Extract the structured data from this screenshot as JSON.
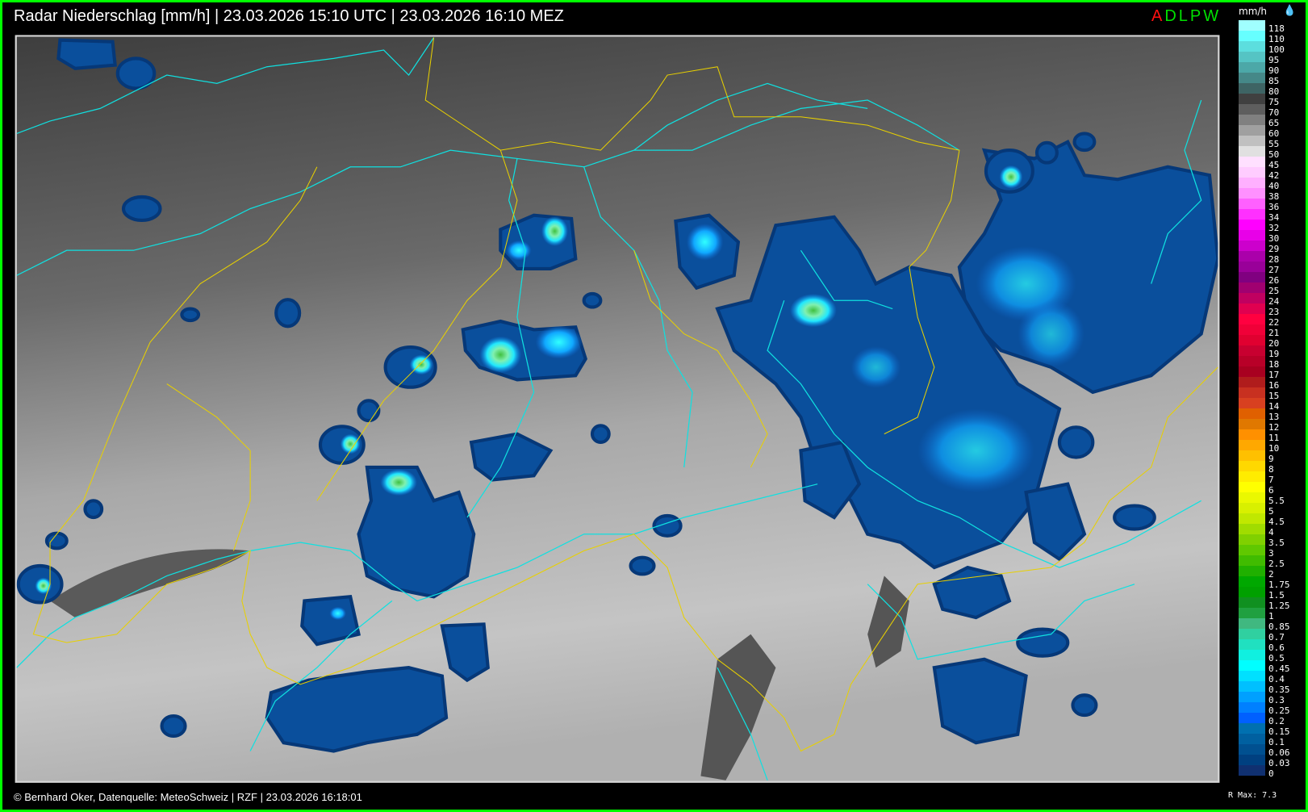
{
  "header": {
    "title": "Radar Niederschlag [mm/h] | 23.03.2026 15:10 UTC | 23.03.2026 16:10 MEZ",
    "brand_first_letter": "A",
    "brand_rest": "DLPW"
  },
  "legend": {
    "unit": "mm/h",
    "icon": "raindrops-icon",
    "items": [
      {
        "label": "118",
        "color": "#a0ffff"
      },
      {
        "label": "110",
        "color": "#66ffff"
      },
      {
        "label": "100",
        "color": "#5cdede"
      },
      {
        "label": "95",
        "color": "#55c4c4"
      },
      {
        "label": "90",
        "color": "#4ca8a8"
      },
      {
        "label": "85",
        "color": "#458888"
      },
      {
        "label": "80",
        "color": "#3e6464"
      },
      {
        "label": "75",
        "color": "#404040"
      },
      {
        "label": "70",
        "color": "#5e5e5e"
      },
      {
        "label": "65",
        "color": "#808080"
      },
      {
        "label": "60",
        "color": "#a0a0a0"
      },
      {
        "label": "55",
        "color": "#c0c0c0"
      },
      {
        "label": "50",
        "color": "#e0e0e0"
      },
      {
        "label": "45",
        "color": "#ffe0ff"
      },
      {
        "label": "42",
        "color": "#ffccff"
      },
      {
        "label": "40",
        "color": "#ffb0ff"
      },
      {
        "label": "38",
        "color": "#ff90ff"
      },
      {
        "label": "36",
        "color": "#ff60ff"
      },
      {
        "label": "34",
        "color": "#ff30ff"
      },
      {
        "label": "32",
        "color": "#ff00ff"
      },
      {
        "label": "30",
        "color": "#e800e8"
      },
      {
        "label": "29",
        "color": "#cc00cc"
      },
      {
        "label": "28",
        "color": "#aa00aa"
      },
      {
        "label": "27",
        "color": "#990099"
      },
      {
        "label": "26",
        "color": "#800080"
      },
      {
        "label": "25",
        "color": "#a00070"
      },
      {
        "label": "24",
        "color": "#c00060"
      },
      {
        "label": "23",
        "color": "#e00050"
      },
      {
        "label": "22",
        "color": "#ff0040"
      },
      {
        "label": "21",
        "color": "#f00038"
      },
      {
        "label": "20",
        "color": "#e00030"
      },
      {
        "label": "19",
        "color": "#c80030"
      },
      {
        "label": "18",
        "color": "#b80028"
      },
      {
        "label": "17",
        "color": "#a80020"
      },
      {
        "label": "16",
        "color": "#b01c1c"
      },
      {
        "label": "15",
        "color": "#c83020"
      },
      {
        "label": "14",
        "color": "#d84020"
      },
      {
        "label": "13",
        "color": "#e06000"
      },
      {
        "label": "12",
        "color": "#e07800"
      },
      {
        "label": "11",
        "color": "#ff9000"
      },
      {
        "label": "10",
        "color": "#ffa800"
      },
      {
        "label": "9",
        "color": "#ffc000"
      },
      {
        "label": "8",
        "color": "#ffd800"
      },
      {
        "label": "7",
        "color": "#ffec00"
      },
      {
        "label": "6",
        "color": "#ffff00"
      },
      {
        "label": "5.5",
        "color": "#eaf800"
      },
      {
        "label": "5",
        "color": "#d8f000"
      },
      {
        "label": "4.5",
        "color": "#c0e800"
      },
      {
        "label": "4",
        "color": "#a0dc00"
      },
      {
        "label": "3.5",
        "color": "#80d000"
      },
      {
        "label": "3",
        "color": "#60c800"
      },
      {
        "label": "2.5",
        "color": "#40bc00"
      },
      {
        "label": "2",
        "color": "#20b000"
      },
      {
        "label": "1.75",
        "color": "#00a800"
      },
      {
        "label": "1.5",
        "color": "#00a000"
      },
      {
        "label": "1.25",
        "color": "#109020"
      },
      {
        "label": "1",
        "color": "#20a040"
      },
      {
        "label": "0.85",
        "color": "#40b880"
      },
      {
        "label": "0.7",
        "color": "#30d0a0"
      },
      {
        "label": "0.6",
        "color": "#20e0c0"
      },
      {
        "label": "0.5",
        "color": "#10f0e0"
      },
      {
        "label": "0.45",
        "color": "#00ffff"
      },
      {
        "label": "0.4",
        "color": "#00e0ff"
      },
      {
        "label": "0.35",
        "color": "#00c0ff"
      },
      {
        "label": "0.3",
        "color": "#00a0ff"
      },
      {
        "label": "0.25",
        "color": "#0080ff"
      },
      {
        "label": "0.2",
        "color": "#0060ff"
      },
      {
        "label": "0.15",
        "color": "#0070b0"
      },
      {
        "label": "0.1",
        "color": "#0060a0"
      },
      {
        "label": "0.06",
        "color": "#005090"
      },
      {
        "label": "0.03",
        "color": "#004080"
      },
      {
        "label": "0",
        "color": "#103070"
      }
    ],
    "rmax": "R Max: 7.3"
  },
  "footer": {
    "text": "© Bernhard Oker, Datenquelle: MeteoSchweiz | RZF | 23.03.2026 16:18:01"
  },
  "colors": {
    "frame": "#00ff00",
    "rivers": "#00e0e0",
    "borders": "#e8d000",
    "precip_base": "#0a4f9c"
  }
}
